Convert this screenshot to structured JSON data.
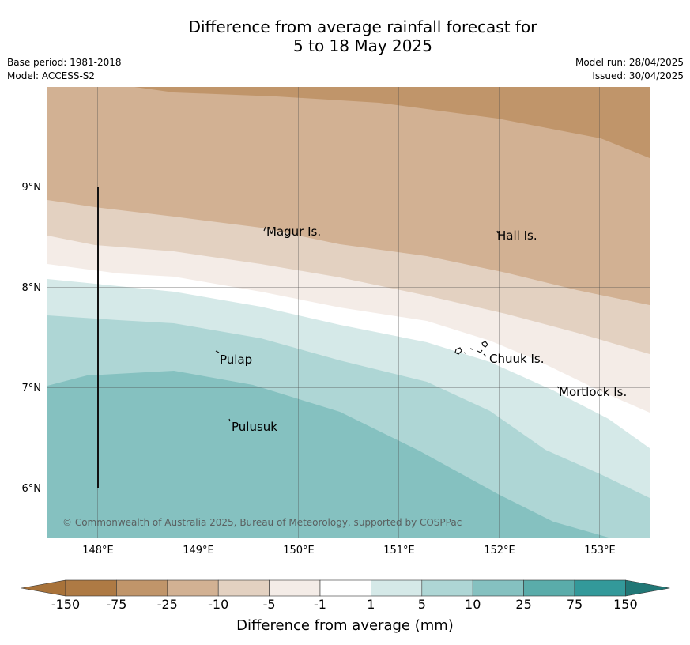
{
  "title": {
    "line1": "Difference from average rainfall forecast for",
    "line2": "5 to 18 May 2025"
  },
  "meta_left": {
    "base_period": "Base period: 1981-2018",
    "model": "Model: ACCESS-S2"
  },
  "meta_right": {
    "model_run": "Model run: 28/04/2025",
    "issued": "Issued: 30/04/2025"
  },
  "map": {
    "lat_labels": [
      "9°N",
      "8°N",
      "7°N",
      "6°N"
    ],
    "lon_labels": [
      "148°E",
      "149°E",
      "150°E",
      "151°E",
      "152°E",
      "153°E"
    ],
    "places": [
      "Magur Is.",
      "Hall Is.",
      "Pulap",
      "Chuuk Is.",
      "Mortlock Is.",
      "Pulusuk"
    ],
    "copyright": "© Commonwealth of Australia 2025, Bureau of Meteorology, supported by COSPPac"
  },
  "colorbar": {
    "title": "Difference from average (mm)",
    "tick_labels": [
      "-150",
      "-75",
      "-25",
      "-10",
      "-5",
      "-1",
      "1",
      "5",
      "10",
      "25",
      "75",
      "150"
    ],
    "colors": [
      "#a87239",
      "#ae7a44",
      "#c0956a",
      "#d2b193",
      "#e3d1c1",
      "#f4ece7",
      "#ffffff",
      "#d5e9e8",
      "#aed6d5",
      "#85c1c0",
      "#5aacaa",
      "#33999a",
      "#217776"
    ]
  }
}
